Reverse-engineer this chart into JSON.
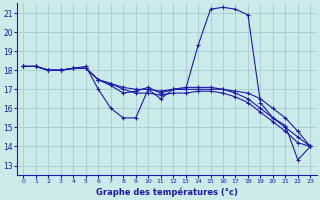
{
  "xlabel": "Graphe des températures (°c)",
  "background_color": "#cceaea",
  "grid_color": "#aacccc",
  "line_color": "#1a1aaa",
  "xlim": [
    -0.5,
    23.5
  ],
  "ylim": [
    12.5,
    21.5
  ],
  "xticks": [
    0,
    1,
    2,
    3,
    4,
    5,
    6,
    7,
    8,
    9,
    10,
    11,
    12,
    13,
    14,
    15,
    16,
    17,
    18,
    19,
    20,
    21,
    22,
    23
  ],
  "yticks": [
    13,
    14,
    15,
    16,
    17,
    18,
    19,
    20,
    21
  ],
  "lines": [
    {
      "x": [
        0,
        1,
        2,
        3,
        4,
        5,
        6,
        7,
        8,
        9,
        10,
        11,
        12,
        13,
        14,
        15,
        16,
        17,
        18,
        19,
        20,
        21,
        22,
        23
      ],
      "y": [
        18.2,
        18.2,
        18.0,
        18.0,
        18.1,
        18.2,
        17.0,
        16.0,
        15.5,
        15.5,
        17.0,
        16.5,
        17.0,
        17.0,
        19.3,
        21.2,
        21.3,
        21.2,
        20.9,
        16.3,
        15.5,
        15.1,
        13.3,
        14.0
      ]
    },
    {
      "x": [
        0,
        1,
        2,
        3,
        4,
        5,
        6,
        7,
        8,
        9,
        10,
        11,
        12,
        13,
        14,
        15,
        16,
        17,
        18,
        19,
        20,
        21,
        22,
        23
      ],
      "y": [
        18.2,
        18.2,
        18.0,
        18.0,
        18.1,
        18.1,
        17.5,
        17.3,
        17.1,
        17.0,
        17.0,
        16.9,
        17.0,
        17.0,
        17.0,
        17.0,
        17.0,
        16.8,
        16.5,
        16.0,
        15.5,
        15.0,
        14.5,
        14.0
      ]
    },
    {
      "x": [
        0,
        1,
        2,
        3,
        4,
        5,
        6,
        7,
        8,
        9,
        10,
        11,
        12,
        13,
        14,
        15,
        16,
        17,
        18,
        19,
        20,
        21,
        22,
        23
      ],
      "y": [
        18.2,
        18.2,
        18.0,
        18.0,
        18.1,
        18.1,
        17.5,
        17.3,
        17.0,
        16.8,
        16.8,
        16.7,
        16.8,
        16.8,
        16.9,
        16.9,
        16.8,
        16.6,
        16.3,
        15.8,
        15.3,
        14.8,
        14.2,
        14.0
      ]
    },
    {
      "x": [
        0,
        1,
        2,
        3,
        4,
        5,
        6,
        7,
        8,
        9,
        10,
        11,
        12,
        13,
        14,
        15,
        16,
        17,
        18,
        19,
        20,
        21,
        22,
        23
      ],
      "y": [
        18.2,
        18.2,
        18.0,
        18.0,
        18.1,
        18.1,
        17.5,
        17.2,
        16.8,
        16.9,
        17.1,
        16.8,
        17.0,
        17.1,
        17.1,
        17.1,
        17.0,
        16.9,
        16.8,
        16.5,
        16.0,
        15.5,
        14.8,
        14.0
      ]
    }
  ]
}
